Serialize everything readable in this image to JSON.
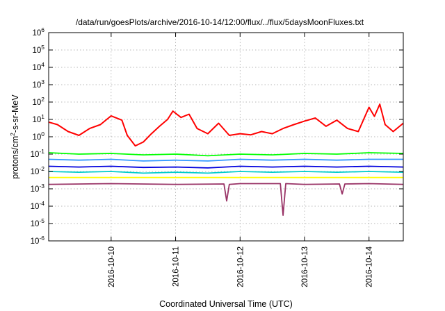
{
  "chart_data": {
    "type": "line",
    "title": "/data/run/goesPlots/archive/2016-10-14/12:00/flux/../flux/5daysMoonFluxes.txt",
    "xlabel": "Coordinated Universal Time (UTC)",
    "ylabel": {
      "base": "protons/cm",
      "sup": "2",
      "rest": "-s-sr-MeV"
    },
    "y_scale": "log",
    "ylim": [
      1e-06,
      1000000.0
    ],
    "xlim": [
      "2016-10-09T00:45:00Z",
      "2016-10-14T12:45:00Z"
    ],
    "grid": true,
    "legend": "none",
    "y_ticks": [
      {
        "value": 1e-06,
        "base": "10",
        "exp": "-6"
      },
      {
        "value": 1e-05,
        "base": "10",
        "exp": "-5"
      },
      {
        "value": 0.0001,
        "base": "10",
        "exp": "-4"
      },
      {
        "value": 0.001,
        "base": "10",
        "exp": "-3"
      },
      {
        "value": 0.01,
        "base": "10",
        "exp": "-2"
      },
      {
        "value": 0.1,
        "base": "10",
        "exp": "-1"
      },
      {
        "value": 1,
        "base": "10",
        "exp": "0"
      },
      {
        "value": 10,
        "base": "10",
        "exp": "1"
      },
      {
        "value": 100,
        "base": "10",
        "exp": "2"
      },
      {
        "value": 1000,
        "base": "10",
        "exp": "3"
      },
      {
        "value": 10000,
        "base": "10",
        "exp": "4"
      },
      {
        "value": 100000,
        "base": "10",
        "exp": "5"
      },
      {
        "value": 1000000,
        "base": "10",
        "exp": "6"
      }
    ],
    "x_ticks": [
      {
        "value": "2016-10-10T00:00:00Z",
        "label": "2016-10-10"
      },
      {
        "value": "2016-10-11T00:00:00Z",
        "label": "2016-10-11"
      },
      {
        "value": "2016-10-12T00:00:00Z",
        "label": "2016-10-12"
      },
      {
        "value": "2016-10-13T00:00:00Z",
        "label": "2016-10-13"
      },
      {
        "value": "2016-10-14T00:00:00Z",
        "label": "2016-10-14"
      }
    ],
    "series": [
      {
        "color": "#ff0000",
        "points": [
          [
            "2016-10-09T00:45:00Z",
            7
          ],
          [
            "2016-10-09T04:00:00Z",
            5
          ],
          [
            "2016-10-09T08:00:00Z",
            2
          ],
          [
            "2016-10-09T12:00:00Z",
            1.2
          ],
          [
            "2016-10-09T16:00:00Z",
            3
          ],
          [
            "2016-10-09T20:00:00Z",
            5
          ],
          [
            "2016-10-10T00:00:00Z",
            16
          ],
          [
            "2016-10-10T04:00:00Z",
            9
          ],
          [
            "2016-10-10T06:00:00Z",
            1.2
          ],
          [
            "2016-10-10T09:00:00Z",
            0.3
          ],
          [
            "2016-10-10T12:00:00Z",
            0.5
          ],
          [
            "2016-10-10T15:00:00Z",
            1.5
          ],
          [
            "2016-10-10T18:00:00Z",
            4
          ],
          [
            "2016-10-10T21:00:00Z",
            10
          ],
          [
            "2016-10-10T23:00:00Z",
            30
          ],
          [
            "2016-10-11T02:00:00Z",
            13
          ],
          [
            "2016-10-11T05:00:00Z",
            20
          ],
          [
            "2016-10-11T08:00:00Z",
            3
          ],
          [
            "2016-10-11T12:00:00Z",
            1.5
          ],
          [
            "2016-10-11T16:00:00Z",
            6
          ],
          [
            "2016-10-11T20:00:00Z",
            1.2
          ],
          [
            "2016-10-12T00:00:00Z",
            1.5
          ],
          [
            "2016-10-12T04:00:00Z",
            1.3
          ],
          [
            "2016-10-12T08:00:00Z",
            2
          ],
          [
            "2016-10-12T12:00:00Z",
            1.5
          ],
          [
            "2016-10-12T16:00:00Z",
            3
          ],
          [
            "2016-10-12T20:00:00Z",
            5
          ],
          [
            "2016-10-13T00:00:00Z",
            8
          ],
          [
            "2016-10-13T04:00:00Z",
            12
          ],
          [
            "2016-10-13T08:00:00Z",
            4
          ],
          [
            "2016-10-13T12:00:00Z",
            9
          ],
          [
            "2016-10-13T16:00:00Z",
            3
          ],
          [
            "2016-10-13T20:00:00Z",
            2
          ],
          [
            "2016-10-14T00:00:00Z",
            50
          ],
          [
            "2016-10-14T02:00:00Z",
            15
          ],
          [
            "2016-10-14T04:00:00Z",
            75
          ],
          [
            "2016-10-14T06:00:00Z",
            5
          ],
          [
            "2016-10-14T09:00:00Z",
            2
          ],
          [
            "2016-10-14T12:45:00Z",
            6
          ]
        ]
      },
      {
        "color": "#00ff00",
        "points": [
          [
            "2016-10-09T00:45:00Z",
            0.12
          ],
          [
            "2016-10-09T12:00:00Z",
            0.1
          ],
          [
            "2016-10-10T00:00:00Z",
            0.11
          ],
          [
            "2016-10-10T12:00:00Z",
            0.09
          ],
          [
            "2016-10-11T00:00:00Z",
            0.1
          ],
          [
            "2016-10-11T12:00:00Z",
            0.08
          ],
          [
            "2016-10-12T00:00:00Z",
            0.1
          ],
          [
            "2016-10-12T12:00:00Z",
            0.09
          ],
          [
            "2016-10-13T00:00:00Z",
            0.11
          ],
          [
            "2016-10-13T12:00:00Z",
            0.1
          ],
          [
            "2016-10-14T00:00:00Z",
            0.12
          ],
          [
            "2016-10-14T12:45:00Z",
            0.11
          ]
        ]
      },
      {
        "color": "#3399ff",
        "points": [
          [
            "2016-10-09T00:45:00Z",
            0.05
          ],
          [
            "2016-10-09T12:00:00Z",
            0.045
          ],
          [
            "2016-10-10T00:00:00Z",
            0.05
          ],
          [
            "2016-10-10T12:00:00Z",
            0.04
          ],
          [
            "2016-10-11T00:00:00Z",
            0.045
          ],
          [
            "2016-10-11T12:00:00Z",
            0.04
          ],
          [
            "2016-10-12T00:00:00Z",
            0.05
          ],
          [
            "2016-10-12T12:00:00Z",
            0.045
          ],
          [
            "2016-10-13T00:00:00Z",
            0.05
          ],
          [
            "2016-10-13T12:00:00Z",
            0.045
          ],
          [
            "2016-10-14T00:00:00Z",
            0.05
          ],
          [
            "2016-10-14T12:45:00Z",
            0.05
          ]
        ]
      },
      {
        "color": "#0000dd",
        "points": [
          [
            "2016-10-09T00:45:00Z",
            0.02
          ],
          [
            "2016-10-09T12:00:00Z",
            0.018
          ],
          [
            "2016-10-10T00:00:00Z",
            0.02
          ],
          [
            "2016-10-10T12:00:00Z",
            0.017
          ],
          [
            "2016-10-11T00:00:00Z",
            0.018
          ],
          [
            "2016-10-11T12:00:00Z",
            0.016
          ],
          [
            "2016-10-12T00:00:00Z",
            0.02
          ],
          [
            "2016-10-12T12:00:00Z",
            0.018
          ],
          [
            "2016-10-13T00:00:00Z",
            0.02
          ],
          [
            "2016-10-13T12:00:00Z",
            0.018
          ],
          [
            "2016-10-14T00:00:00Z",
            0.02
          ],
          [
            "2016-10-14T12:45:00Z",
            0.018
          ]
        ]
      },
      {
        "color": "#00cccc",
        "points": [
          [
            "2016-10-09T00:45:00Z",
            0.01
          ],
          [
            "2016-10-09T12:00:00Z",
            0.009
          ],
          [
            "2016-10-10T00:00:00Z",
            0.01
          ],
          [
            "2016-10-10T12:00:00Z",
            0.008
          ],
          [
            "2016-10-11T00:00:00Z",
            0.009
          ],
          [
            "2016-10-11T12:00:00Z",
            0.008
          ],
          [
            "2016-10-12T00:00:00Z",
            0.01
          ],
          [
            "2016-10-12T12:00:00Z",
            0.009
          ],
          [
            "2016-10-13T00:00:00Z",
            0.01
          ],
          [
            "2016-10-13T12:00:00Z",
            0.009
          ],
          [
            "2016-10-14T00:00:00Z",
            0.01
          ],
          [
            "2016-10-14T12:45:00Z",
            0.009
          ]
        ]
      },
      {
        "color": "#ffff00",
        "points": [
          [
            "2016-10-09T00:45:00Z",
            0.0045
          ],
          [
            "2016-10-10T00:00:00Z",
            0.0045
          ],
          [
            "2016-10-11T00:00:00Z",
            0.0045
          ],
          [
            "2016-10-12T00:00:00Z",
            0.0045
          ],
          [
            "2016-10-13T00:00:00Z",
            0.0045
          ],
          [
            "2016-10-14T00:00:00Z",
            0.0045
          ],
          [
            "2016-10-14T12:45:00Z",
            0.0045
          ]
        ]
      },
      {
        "color": "#993366",
        "points": [
          [
            "2016-10-09T00:45:00Z",
            0.0018
          ],
          [
            "2016-10-10T00:00:00Z",
            0.002
          ],
          [
            "2016-10-11T00:00:00Z",
            0.0018
          ],
          [
            "2016-10-11T18:00:00Z",
            0.0019
          ],
          [
            "2016-10-11T19:00:00Z",
            0.0002
          ],
          [
            "2016-10-11T20:00:00Z",
            0.0018
          ],
          [
            "2016-10-12T00:00:00Z",
            0.002
          ],
          [
            "2016-10-12T15:00:00Z",
            0.002
          ],
          [
            "2016-10-12T16:00:00Z",
            3e-05
          ],
          [
            "2016-10-12T17:00:00Z",
            0.002
          ],
          [
            "2016-10-13T00:00:00Z",
            0.0018
          ],
          [
            "2016-10-13T13:00:00Z",
            0.0019
          ],
          [
            "2016-10-13T14:00:00Z",
            0.0005
          ],
          [
            "2016-10-13T15:00:00Z",
            0.0019
          ],
          [
            "2016-10-14T00:00:00Z",
            0.002
          ],
          [
            "2016-10-14T12:45:00Z",
            0.0018
          ]
        ]
      }
    ]
  }
}
